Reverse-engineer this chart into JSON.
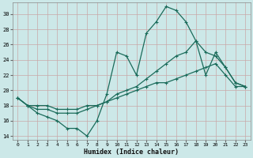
{
  "xlabel": "Humidex (Indice chaleur)",
  "bg_color": "#cce8e8",
  "grid_color": "#c8a8a8",
  "line_color": "#1a6b5a",
  "x_values": [
    0,
    1,
    2,
    3,
    4,
    5,
    6,
    7,
    8,
    9,
    10,
    11,
    12,
    13,
    14,
    15,
    16,
    17,
    18,
    19,
    20,
    21,
    22,
    23
  ],
  "y_top": [
    19.0,
    18.0,
    17.0,
    16.5,
    16.0,
    15.0,
    15.0,
    14.0,
    16.0,
    19.5,
    25.0,
    24.5,
    22.0,
    27.5,
    29.0,
    31.0,
    30.5,
    29.0,
    26.5,
    22.0,
    25.0,
    23.0,
    21.0,
    20.5
  ],
  "y_mid": [
    19.0,
    18.0,
    17.5,
    17.5,
    17.0,
    17.0,
    17.0,
    17.5,
    18.0,
    18.5,
    19.5,
    20.0,
    20.5,
    21.5,
    22.5,
    23.5,
    24.5,
    25.0,
    26.5,
    25.0,
    24.5,
    23.0,
    21.0,
    20.5
  ],
  "y_bot": [
    19.0,
    18.0,
    18.0,
    18.0,
    17.5,
    17.5,
    17.5,
    18.0,
    18.0,
    18.5,
    19.0,
    19.5,
    20.0,
    20.5,
    21.0,
    21.0,
    21.5,
    22.0,
    22.5,
    23.0,
    23.5,
    22.0,
    20.5,
    20.5
  ],
  "ylim": [
    13.5,
    31.5
  ],
  "yticks": [
    14,
    16,
    18,
    20,
    22,
    24,
    26,
    28,
    30
  ],
  "xlim": [
    -0.5,
    23.5
  ]
}
